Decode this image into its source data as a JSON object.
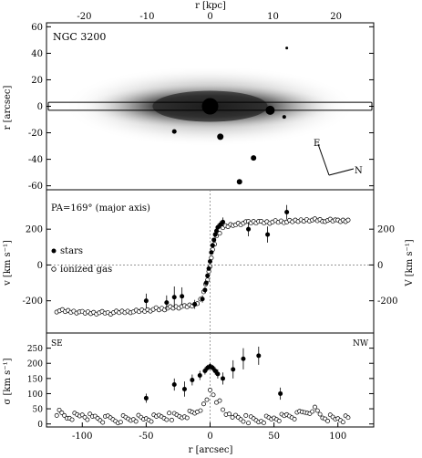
{
  "chart_data": [
    {
      "panel": "image",
      "type": "image",
      "top_axis": {
        "label": "r [kpc]",
        "range": [
          -26,
          26
        ],
        "ticks": [
          -20,
          -10,
          0,
          10,
          20
        ]
      },
      "ylabel": "r [arcsec]",
      "ylim": [
        -63,
        63
      ],
      "yticks": [
        -60,
        -40,
        -20,
        0,
        20,
        40,
        60
      ],
      "xlim": [
        -128,
        128
      ],
      "title": "NGC 3200",
      "compass": {
        "east": "E",
        "north": "N"
      },
      "slit": {
        "x": [
          -128,
          128
        ],
        "y": [
          -3,
          3
        ]
      },
      "galaxy": {
        "center": [
          0,
          0
        ],
        "major_axis_arcsec": 100,
        "minor_axis_arcsec": 18,
        "pa_deg": 0
      },
      "field_stars": [
        {
          "x": 0,
          "y": 0,
          "size": 9
        },
        {
          "x": 47,
          "y": -3,
          "size": 5
        },
        {
          "x": 8,
          "y": -23,
          "size": 3.5
        },
        {
          "x": 34,
          "y": -39,
          "size": 3
        },
        {
          "x": -28,
          "y": -19,
          "size": 2.5
        },
        {
          "x": 23,
          "y": -57,
          "size": 3
        },
        {
          "x": 58,
          "y": -8,
          "size": 2
        },
        {
          "x": 60,
          "y": 44,
          "size": 1.5
        }
      ]
    },
    {
      "panel": "velocity",
      "type": "scatter",
      "annotation": "PA=169° (major axis)",
      "xlim": [
        -128,
        128
      ],
      "ylim": [
        -380,
        420
      ],
      "yticks": [
        -200,
        0,
        200
      ],
      "ylabel": "v [km s⁻¹]",
      "ylabel_right": "V [km s⁻¹]",
      "legend": [
        {
          "marker": "filled-circle",
          "label": "stars"
        },
        {
          "marker": "open-circle",
          "label": "ionized gas"
        }
      ],
      "series": [
        {
          "marker": "filled",
          "points": [
            {
              "x": -50,
              "y": -200,
              "err": 40
            },
            {
              "x": -34,
              "y": -210,
              "err": 40
            },
            {
              "x": -28,
              "y": -180,
              "err": 60
            },
            {
              "x": -22,
              "y": -175,
              "err": 50
            },
            {
              "x": -12,
              "y": -220,
              "err": 25
            },
            {
              "x": -6,
              "y": -190,
              "err": 20
            },
            {
              "x": -4,
              "y": -140,
              "err": 15
            },
            {
              "x": -3,
              "y": -100,
              "err": 12
            },
            {
              "x": -2,
              "y": -60,
              "err": 10
            },
            {
              "x": -1,
              "y": -20,
              "err": 8
            },
            {
              "x": 0,
              "y": 20,
              "err": 8
            },
            {
              "x": 1,
              "y": 70,
              "err": 10
            },
            {
              "x": 2,
              "y": 110,
              "err": 12
            },
            {
              "x": 3,
              "y": 140,
              "err": 12
            },
            {
              "x": 4,
              "y": 170,
              "err": 15
            },
            {
              "x": 5,
              "y": 190,
              "err": 15
            },
            {
              "x": 6,
              "y": 210,
              "err": 18
            },
            {
              "x": 8,
              "y": 225,
              "err": 20
            },
            {
              "x": 10,
              "y": 240,
              "err": 25
            },
            {
              "x": 30,
              "y": 200,
              "err": 40
            },
            {
              "x": 45,
              "y": 170,
              "err": 45
            },
            {
              "x": 60,
              "y": 295,
              "err": 40
            }
          ]
        },
        {
          "marker": "open",
          "curves": [
            {
              "x": -120,
              "y": -255
            },
            {
              "x": -100,
              "y": -265
            },
            {
              "x": -80,
              "y": -268
            },
            {
              "x": -60,
              "y": -260
            },
            {
              "x": -40,
              "y": -245
            },
            {
              "x": -20,
              "y": -235
            },
            {
              "x": -10,
              "y": -220
            },
            {
              "x": -5,
              "y": -150
            },
            {
              "x": -2,
              "y": -80
            },
            {
              "x": 0,
              "y": 0
            },
            {
              "x": 2,
              "y": 80
            },
            {
              "x": 5,
              "y": 160
            },
            {
              "x": 10,
              "y": 210
            },
            {
              "x": 20,
              "y": 230
            },
            {
              "x": 30,
              "y": 235
            },
            {
              "x": 40,
              "y": 240
            },
            {
              "x": 60,
              "y": 240
            },
            {
              "x": 80,
              "y": 255
            },
            {
              "x": 90,
              "y": 250
            },
            {
              "x": 100,
              "y": 245
            },
            {
              "x": 110,
              "y": 250
            }
          ]
        }
      ]
    },
    {
      "panel": "dispersion",
      "type": "scatter",
      "corner_labels": {
        "left": "SE",
        "right": "NW"
      },
      "xlim": [
        -128,
        128
      ],
      "ylim": [
        -10,
        300
      ],
      "xticks": [
        -100,
        -50,
        0,
        50,
        100
      ],
      "yticks": [
        0,
        50,
        100,
        150,
        200,
        250
      ],
      "ylabel": "σ [km s⁻¹]",
      "xlabel": "r [arcsec]",
      "series": [
        {
          "marker": "filled",
          "points": [
            {
              "x": -50,
              "y": 85,
              "err": 15
            },
            {
              "x": -28,
              "y": 130,
              "err": 20
            },
            {
              "x": -20,
              "y": 115,
              "err": 25
            },
            {
              "x": -14,
              "y": 145,
              "err": 18
            },
            {
              "x": -8,
              "y": 160,
              "err": 15
            },
            {
              "x": -4,
              "y": 175,
              "err": 12
            },
            {
              "x": -2,
              "y": 185,
              "err": 10
            },
            {
              "x": 0,
              "y": 190,
              "err": 10
            },
            {
              "x": 2,
              "y": 185,
              "err": 10
            },
            {
              "x": 4,
              "y": 175,
              "err": 12
            },
            {
              "x": 6,
              "y": 165,
              "err": 15
            },
            {
              "x": 10,
              "y": 150,
              "err": 20
            },
            {
              "x": 18,
              "y": 180,
              "err": 30
            },
            {
              "x": 26,
              "y": 215,
              "err": 35
            },
            {
              "x": 38,
              "y": 225,
              "err": 30
            },
            {
              "x": 55,
              "y": 100,
              "err": 20
            }
          ]
        },
        {
          "marker": "open",
          "curves": [
            {
              "x": -120,
              "y": 40
            },
            {
              "x": -110,
              "y": 25
            },
            {
              "x": -100,
              "y": 30
            },
            {
              "x": -90,
              "y": 20
            },
            {
              "x": -80,
              "y": 15
            },
            {
              "x": -70,
              "y": 15
            },
            {
              "x": -60,
              "y": 18
            },
            {
              "x": -50,
              "y": 15
            },
            {
              "x": -40,
              "y": 20
            },
            {
              "x": -30,
              "y": 25
            },
            {
              "x": -20,
              "y": 30
            },
            {
              "x": -10,
              "y": 40
            },
            {
              "x": -5,
              "y": 60
            },
            {
              "x": 0,
              "y": 100
            },
            {
              "x": 5,
              "y": 80
            },
            {
              "x": 10,
              "y": 50
            },
            {
              "x": 15,
              "y": 30
            },
            {
              "x": 20,
              "y": 20
            },
            {
              "x": 30,
              "y": 15
            },
            {
              "x": 40,
              "y": 15
            },
            {
              "x": 50,
              "y": 20
            },
            {
              "x": 60,
              "y": 25
            },
            {
              "x": 70,
              "y": 30
            },
            {
              "x": 80,
              "y": 50
            },
            {
              "x": 90,
              "y": 20
            },
            {
              "x": 100,
              "y": 15
            },
            {
              "x": 110,
              "y": 15
            }
          ]
        }
      ]
    }
  ]
}
